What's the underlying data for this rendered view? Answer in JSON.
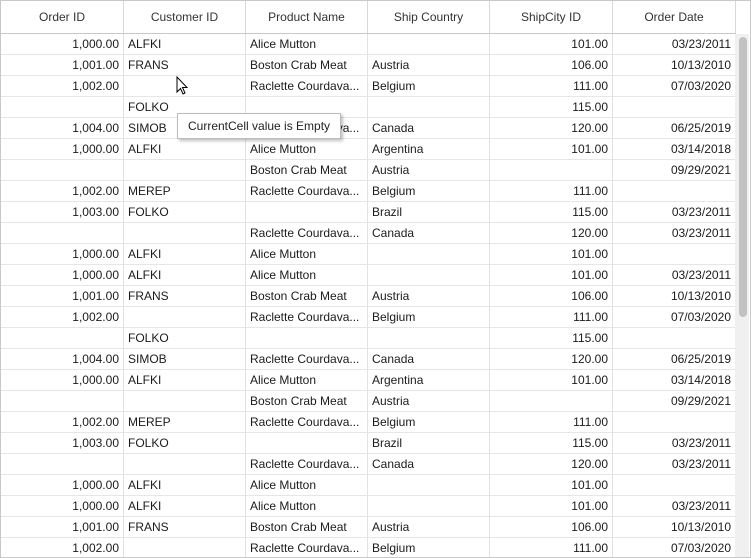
{
  "columns": [
    "Order ID",
    "Customer ID",
    "Product Name",
    "Ship Country",
    "ShipCity ID",
    "Order Date"
  ],
  "rows": [
    [
      "1,000.00",
      "ALFKI",
      "Alice Mutton",
      "",
      "101.00",
      "03/23/2011"
    ],
    [
      "1,001.00",
      "FRANS",
      "Boston Crab Meat",
      "Austria",
      "106.00",
      "10/13/2010"
    ],
    [
      "1,002.00",
      "",
      "Raclette  Courdava...",
      "Belgium",
      "111.00",
      "07/03/2020"
    ],
    [
      "",
      "FOLKO",
      "",
      "",
      "115.00",
      ""
    ],
    [
      "1,004.00",
      "SIMOB",
      "Raclette  Courdava...",
      "Canada",
      "120.00",
      "06/25/2019"
    ],
    [
      "1,000.00",
      "ALFKI",
      "Alice Mutton",
      "Argentina",
      "101.00",
      "03/14/2018"
    ],
    [
      "",
      "",
      "Boston Crab Meat",
      "Austria",
      "",
      "09/29/2021"
    ],
    [
      "1,002.00",
      "MEREP",
      "Raclette  Courdava...",
      "Belgium",
      "111.00",
      ""
    ],
    [
      "1,003.00",
      "FOLKO",
      "",
      "Brazil",
      "115.00",
      "03/23/2011"
    ],
    [
      "",
      "",
      "Raclette  Courdava...",
      "Canada",
      "120.00",
      "03/23/2011"
    ],
    [
      "1,000.00",
      "ALFKI",
      "Alice Mutton",
      "",
      "101.00",
      ""
    ],
    [
      "1,000.00",
      "ALFKI",
      "Alice Mutton",
      "",
      "101.00",
      "03/23/2011"
    ],
    [
      "1,001.00",
      "FRANS",
      "Boston Crab Meat",
      "Austria",
      "106.00",
      "10/13/2010"
    ],
    [
      "1,002.00",
      "",
      "Raclette  Courdava...",
      "Belgium",
      "111.00",
      "07/03/2020"
    ],
    [
      "",
      "FOLKO",
      "",
      "",
      "115.00",
      ""
    ],
    [
      "1,004.00",
      "SIMOB",
      "Raclette  Courdava...",
      "Canada",
      "120.00",
      "06/25/2019"
    ],
    [
      "1,000.00",
      "ALFKI",
      "Alice Mutton",
      "Argentina",
      "101.00",
      "03/14/2018"
    ],
    [
      "",
      "",
      "Boston Crab Meat",
      "Austria",
      "",
      "09/29/2021"
    ],
    [
      "1,002.00",
      "MEREP",
      "Raclette  Courdava...",
      "Belgium",
      "111.00",
      ""
    ],
    [
      "1,003.00",
      "FOLKO",
      "",
      "Brazil",
      "115.00",
      "03/23/2011"
    ],
    [
      "",
      "",
      "Raclette  Courdava...",
      "Canada",
      "120.00",
      "03/23/2011"
    ],
    [
      "1,000.00",
      "ALFKI",
      "Alice Mutton",
      "",
      "101.00",
      ""
    ],
    [
      "1,000.00",
      "ALFKI",
      "Alice Mutton",
      "",
      "101.00",
      "03/23/2011"
    ],
    [
      "1,001.00",
      "FRANS",
      "Boston Crab Meat",
      "Austria",
      "106.00",
      "10/13/2010"
    ],
    [
      "1,002.00",
      "",
      "Raclette  Courdava...",
      "Belgium",
      "111.00",
      "07/03/2020"
    ]
  ],
  "tooltip": "CurrentCell value is Empty",
  "colors": {
    "border": "#c8c8c8",
    "gridline": "#e2e2e2",
    "scroll_thumb": "#c2c2c2"
  }
}
